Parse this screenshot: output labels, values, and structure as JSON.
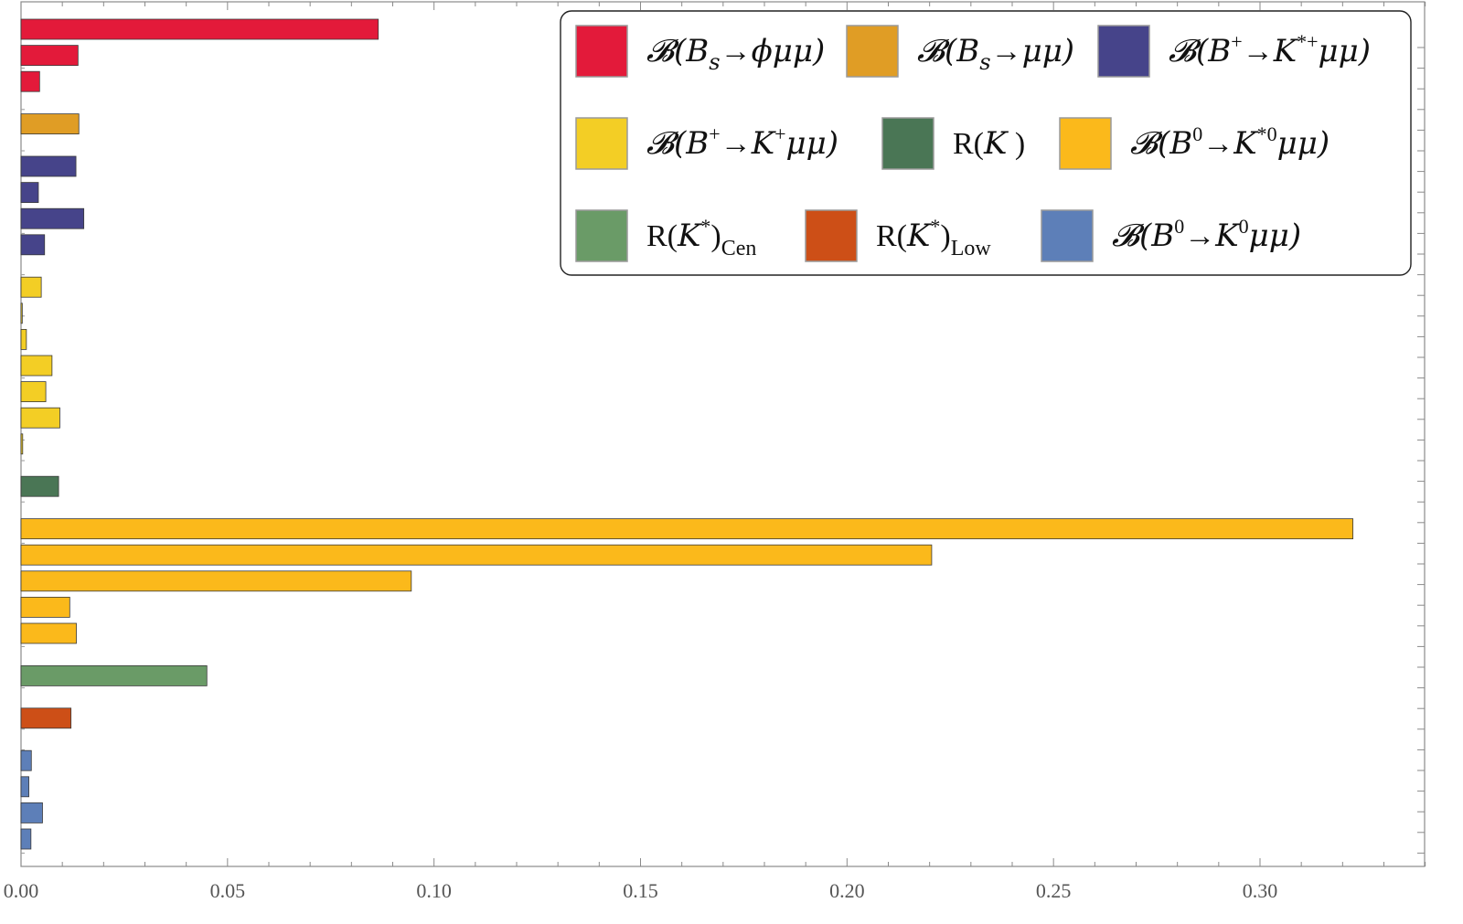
{
  "chart_data": {
    "type": "bar",
    "orientation": "horizontal",
    "xlim": [
      0,
      0.34
    ],
    "x_ticks": [
      "0.00",
      "0.05",
      "0.10",
      "0.15",
      "0.20",
      "0.25",
      "0.30"
    ],
    "x_tick_values": [
      0,
      0.05,
      0.1,
      0.15,
      0.2,
      0.25,
      0.3
    ],
    "legend_position": "top-right",
    "series": [
      {
        "key": "bs_phimumu",
        "color": "#e31a3a",
        "values": [
          0.0865,
          0.0138,
          0.0045
        ]
      },
      {
        "key": "bs_mumu",
        "color": "#e09d25",
        "values": [
          0.014
        ]
      },
      {
        "key": "bplus_kstarplus_mumu",
        "color": "#46448a",
        "values": [
          0.0133,
          0.0042,
          0.0152,
          0.0057
        ]
      },
      {
        "key": "bplus_kplus_mumu",
        "color": "#f3ce25",
        "values": [
          0.0049,
          0.0003,
          0.0013,
          0.0075,
          0.006,
          0.0094,
          0.0004
        ]
      },
      {
        "key": "rk",
        "color": "#4a7655",
        "values": [
          0.0091
        ]
      },
      {
        "key": "b0_kstar0_mumu",
        "color": "#fbb91b",
        "values": [
          0.3225,
          0.2205,
          0.0945,
          0.0118,
          0.0134
        ]
      },
      {
        "key": "rkstar_cen",
        "color": "#6a9b67",
        "values": [
          0.045
        ]
      },
      {
        "key": "rkstar_low",
        "color": "#cd4f17",
        "values": [
          0.0121
        ]
      },
      {
        "key": "b0_k0_mumu",
        "color": "#5d7fb8",
        "values": [
          0.0025,
          0.0019,
          0.0052,
          0.0024
        ]
      }
    ],
    "legend": [
      {
        "key": "bs_phimumu",
        "color": "#e31a3a",
        "label_parts": [
          "𝓑(",
          "B",
          "s",
          "→",
          "ϕμμ)"
        ],
        "label": "𝓑(Bs→ϕμμ)"
      },
      {
        "key": "bs_mumu",
        "color": "#e09d25",
        "label_parts": [
          "𝓑(",
          "B",
          "s",
          "→",
          "μμ)"
        ],
        "label": "𝓑(Bs→μμ)"
      },
      {
        "key": "bplus_kstarplus_mumu",
        "color": "#46448a",
        "label_parts": [
          "𝓑(",
          "B",
          "+",
          "→",
          "K",
          "*+",
          "μμ)"
        ],
        "label": "𝓑(B+→K*+μμ)"
      },
      {
        "key": "bplus_kplus_mumu",
        "color": "#f3ce25",
        "label_parts": [
          "𝓑(",
          "B",
          "+",
          "→",
          "K",
          "+",
          "μμ)"
        ],
        "label": "𝓑(B+→K+μμ)"
      },
      {
        "key": "rk",
        "color": "#4a7655",
        "label_parts": [
          "R(",
          "K",
          " )"
        ],
        "label": "R(K )"
      },
      {
        "key": "b0_kstar0_mumu",
        "color": "#fbb91b",
        "label_parts": [
          "𝓑(",
          "B",
          "0",
          "→",
          "K",
          "*0",
          "μμ)"
        ],
        "label": "𝓑(B0→K*0μμ)"
      },
      {
        "key": "rkstar_cen",
        "color": "#6a9b67",
        "label_parts": [
          "R(",
          "K",
          "*",
          ")",
          "Cen"
        ],
        "label": "R(K*)Cen"
      },
      {
        "key": "rkstar_low",
        "color": "#cd4f17",
        "label_parts": [
          "R(",
          "K",
          "*",
          ")",
          "Low"
        ],
        "label": "R(K*)Low"
      },
      {
        "key": "b0_k0_mumu",
        "color": "#5d7fb8",
        "label_parts": [
          "𝓑(",
          "B",
          "0",
          "→",
          "K",
          "0",
          "μμ)"
        ],
        "label": "𝓑(B0→K0μμ)"
      }
    ]
  }
}
